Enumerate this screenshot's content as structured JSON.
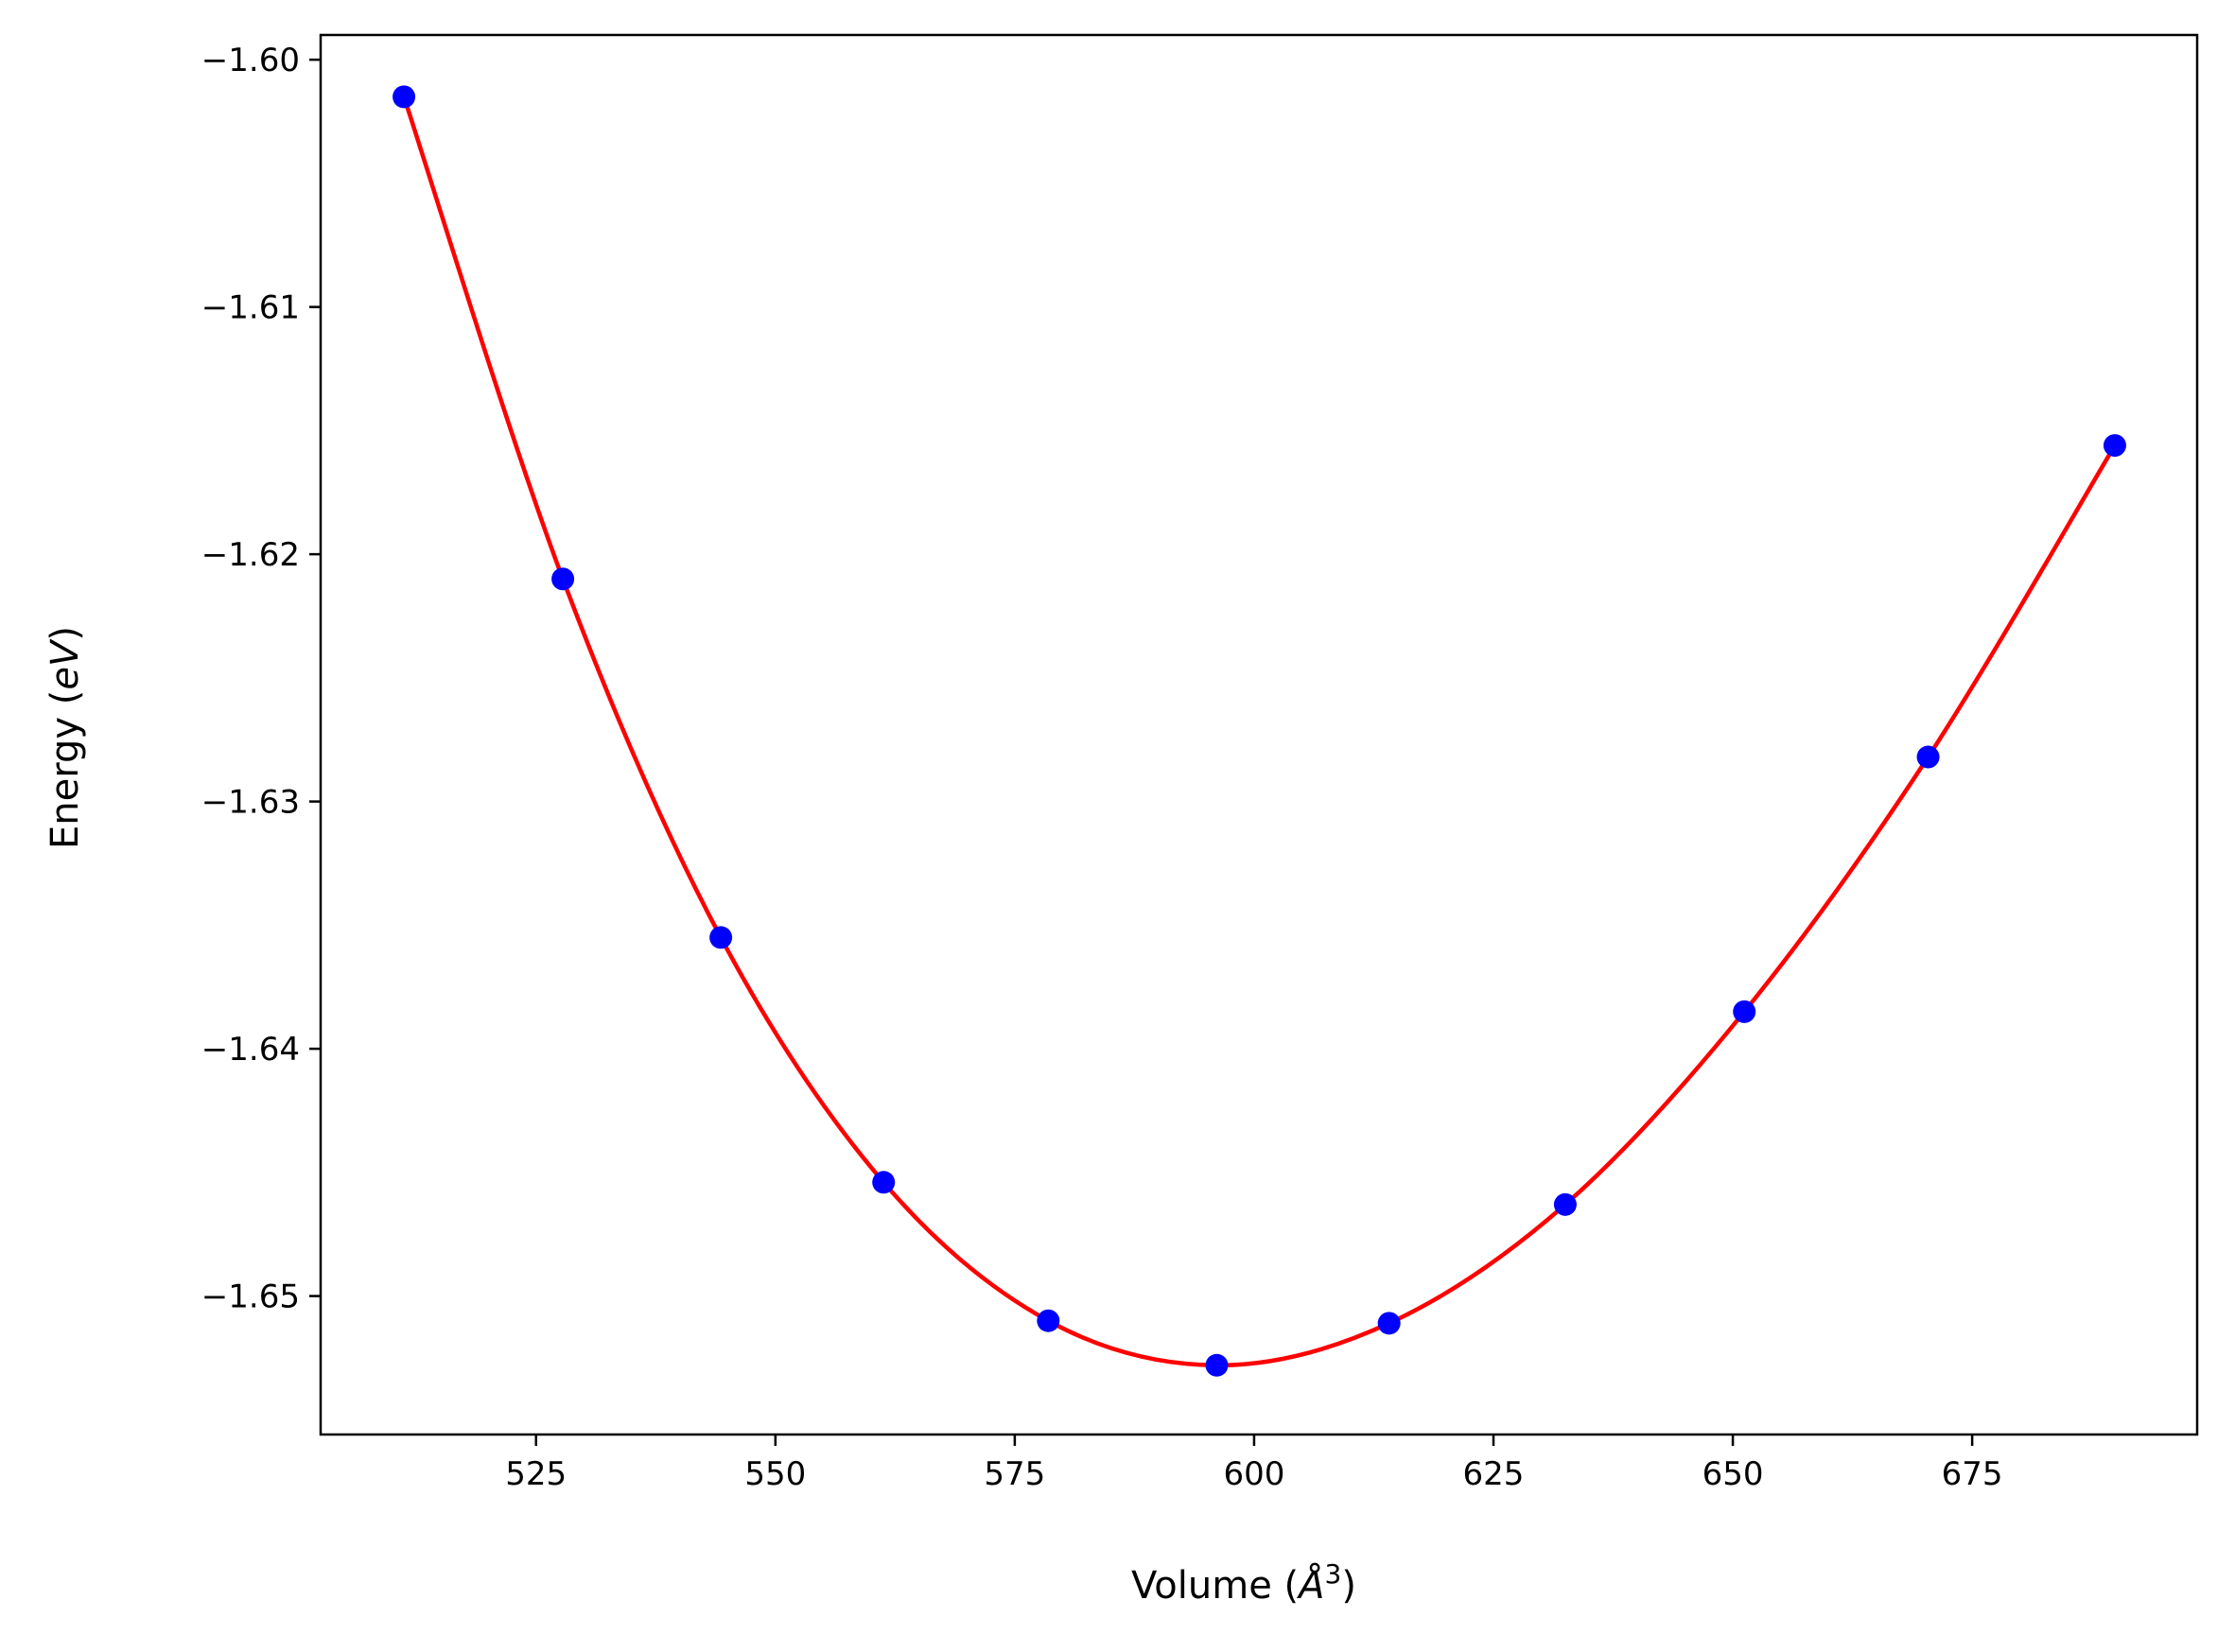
{
  "chart_data": {
    "type": "line",
    "title": "",
    "xlabel": "Volume (Å³)",
    "ylabel": "Energy (eV)",
    "xlabel_parts": {
      "base": "Volume (",
      "italic": "Å",
      "sup": "3",
      "close": ")"
    },
    "ylabel_parts": {
      "base": "Energy (",
      "italic": "eV",
      "close": ")"
    },
    "xlim": [
      502.5,
      698.5
    ],
    "ylim": [
      -1.6556,
      -1.599
    ],
    "xticks": [
      525,
      550,
      575,
      600,
      625,
      650,
      675
    ],
    "xtick_labels": [
      "525",
      "550",
      "575",
      "600",
      "625",
      "650",
      "675"
    ],
    "yticks": [
      -1.6,
      -1.61,
      -1.62,
      -1.63,
      -1.64,
      -1.65
    ],
    "ytick_labels": [
      "−1.60",
      "−1.61",
      "−1.62",
      "−1.63",
      "−1.64",
      "−1.65"
    ],
    "grid": false,
    "series": [
      {
        "kind": "scatter",
        "color": "#0000ff",
        "x": [
          511.2,
          527.8,
          544.3,
          561.3,
          578.5,
          596.1,
          614.1,
          632.5,
          651.2,
          670.4,
          689.9
        ],
        "y": [
          -1.6015,
          -1.621,
          -1.6355,
          -1.6454,
          -1.651,
          -1.6528,
          -1.6511,
          -1.6463,
          -1.6385,
          -1.6282,
          -1.6156
        ]
      },
      {
        "kind": "line",
        "color": "#ff0000",
        "interpolate": "spline",
        "x": [
          511.2,
          527.8,
          544.3,
          561.3,
          578.5,
          596.1,
          614.1,
          632.5,
          651.2,
          670.4,
          689.9
        ],
        "y": [
          -1.6015,
          -1.621,
          -1.6355,
          -1.6454,
          -1.651,
          -1.6528,
          -1.6511,
          -1.6463,
          -1.6385,
          -1.6282,
          -1.6156
        ]
      }
    ]
  }
}
